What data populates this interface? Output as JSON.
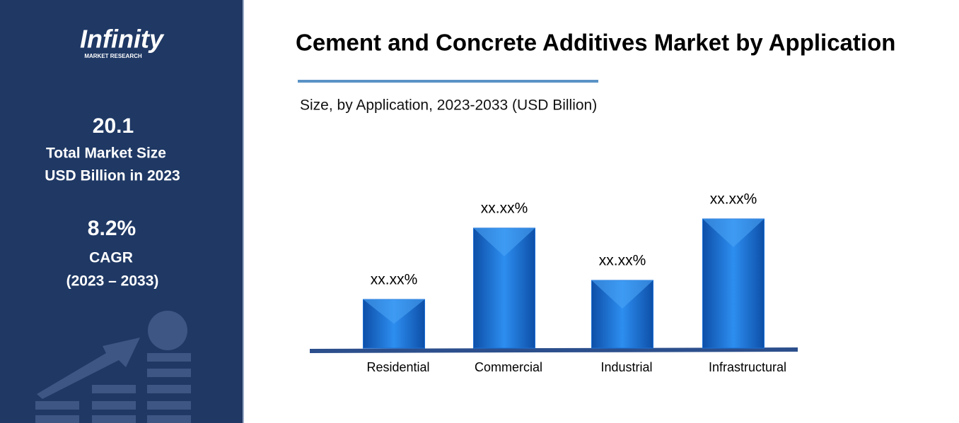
{
  "sidebar": {
    "logo": "Infinity",
    "logo_sub": "MARKET RESEARCH",
    "stat1_value": "20.1",
    "stat1_label1": "Total Market Size",
    "stat1_label2": "USD Billion in 2023",
    "stat2_value": "8.2%",
    "stat2_label1": "CAGR",
    "stat2_label2": "(2023 – 2033)"
  },
  "chart_data": {
    "type": "bar",
    "title": "Cement and Concrete Additives Market by Application",
    "subtitle": "Size, by Application, 2023-2033 (USD Billion)",
    "categories": [
      "Residential",
      "Commercial",
      "Industrial",
      "Infrastructural"
    ],
    "values": [
      69,
      170,
      96,
      183
    ],
    "value_labels": [
      "xx.xx%",
      "xx.xx%",
      "xx.xx%",
      "xx.xx%"
    ],
    "color": "#1a6fd6"
  }
}
